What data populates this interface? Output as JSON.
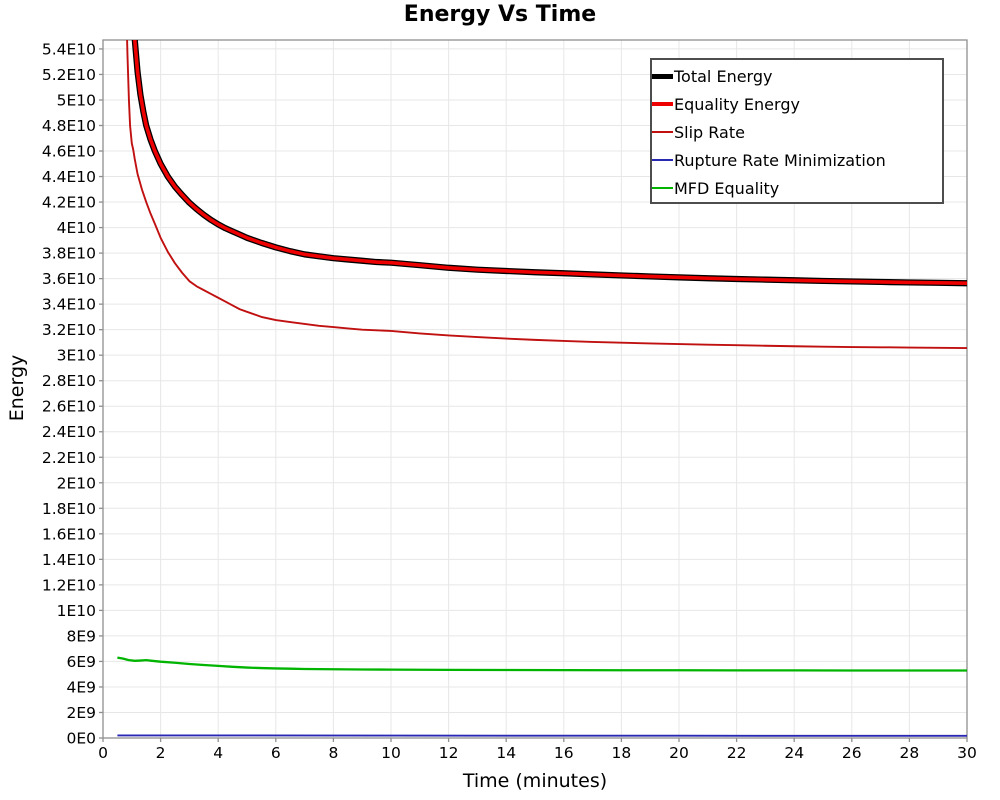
{
  "chart_data": {
    "type": "line",
    "title": "Energy Vs Time",
    "xlabel": "Time (minutes)",
    "ylabel": "Energy",
    "xlim": [
      0,
      30
    ],
    "ylim": [
      0,
      54700000000.0
    ],
    "grid": true,
    "legend_position": "top-right",
    "background_color": "#ffffff",
    "grid_color": "#e7e7e7",
    "frame_color": "#8f8f8f",
    "x_ticks": [
      0,
      2,
      4,
      6,
      8,
      10,
      12,
      14,
      16,
      18,
      20,
      22,
      24,
      26,
      28,
      30
    ],
    "x_tick_labels": [
      "0",
      "2",
      "4",
      "6",
      "8",
      "10",
      "12",
      "14",
      "16",
      "18",
      "20",
      "22",
      "24",
      "26",
      "28",
      "30"
    ],
    "y_tick_values": [
      0,
      2000000000.0,
      4000000000.0,
      6000000000.0,
      8000000000.0,
      10000000000.0,
      12000000000.0,
      14000000000.0,
      16000000000.0,
      18000000000.0,
      20000000000.0,
      22000000000.0,
      24000000000.0,
      26000000000.0,
      28000000000.0,
      30000000000.0,
      32000000000.0,
      34000000000.0,
      36000000000.0,
      38000000000.0,
      40000000000.0,
      42000000000.0,
      44000000000.0,
      46000000000.0,
      48000000000.0,
      50000000000.0,
      52000000000.0,
      54000000000.0
    ],
    "y_tick_labels": [
      "0E0",
      "2E9",
      "4E9",
      "6E9",
      "8E9",
      "1E10",
      "1.2E10",
      "1.4E10",
      "1.6E10",
      "1.8E10",
      "2E10",
      "2.2E10",
      "2.4E10",
      "2.6E10",
      "2.8E10",
      "3E10",
      "3.2E10",
      "3.4E10",
      "3.6E10",
      "3.8E10",
      "4E10",
      "4.2E10",
      "4.4E10",
      "4.6E10",
      "4.8E10",
      "5E10",
      "5.2E10",
      "5.4E10"
    ],
    "series": [
      {
        "name": "Total Energy",
        "color": "#000000",
        "line_width": 6.2,
        "legend_line_width": 5,
        "x": [
          0.9,
          1.0,
          1.1,
          1.2,
          1.3,
          1.4,
          1.5,
          1.65,
          1.8,
          2.0,
          2.25,
          2.5,
          2.75,
          3.0,
          3.25,
          3.5,
          3.75,
          4.0,
          4.25,
          4.5,
          4.75,
          5.0,
          5.5,
          6.0,
          6.5,
          7.0,
          7.5,
          8.0,
          8.5,
          9.0,
          9.5,
          10,
          11,
          12,
          13,
          14,
          15,
          16,
          17,
          18,
          19,
          20,
          21,
          22,
          23,
          24,
          25,
          26,
          27,
          28,
          29,
          30
        ],
        "y": [
          66000000000.0,
          58000000000.0,
          54800000000.0,
          52200000000.0,
          50400000000.0,
          49100000000.0,
          48000000000.0,
          46900000000.0,
          46000000000.0,
          45000000000.0,
          44000000000.0,
          43200000000.0,
          42550000000.0,
          41950000000.0,
          41450000000.0,
          41000000000.0,
          40600000000.0,
          40250000000.0,
          39950000000.0,
          39700000000.0,
          39450000000.0,
          39200000000.0,
          38800000000.0,
          38450000000.0,
          38150000000.0,
          37900000000.0,
          37750000000.0,
          37600000000.0,
          37500000000.0,
          37400000000.0,
          37300000000.0,
          37250000000.0,
          37050000000.0,
          36850000000.0,
          36700000000.0,
          36600000000.0,
          36500000000.0,
          36420000000.0,
          36330000000.0,
          36250000000.0,
          36170000000.0,
          36100000000.0,
          36030000000.0,
          35970000000.0,
          35920000000.0,
          35870000000.0,
          35820000000.0,
          35780000000.0,
          35740000000.0,
          35700000000.0,
          35670000000.0,
          35640000000.0
        ]
      },
      {
        "name": "Equality Energy",
        "color": "#ee0000",
        "line_width": 3.6,
        "legend_line_width": 4,
        "x": [
          0.9,
          1.0,
          1.1,
          1.2,
          1.3,
          1.4,
          1.5,
          1.65,
          1.8,
          2.0,
          2.25,
          2.5,
          2.75,
          3.0,
          3.25,
          3.5,
          3.75,
          4.0,
          4.25,
          4.5,
          4.75,
          5.0,
          5.5,
          6.0,
          6.5,
          7.0,
          7.5,
          8.0,
          8.5,
          9.0,
          9.5,
          10,
          11,
          12,
          13,
          14,
          15,
          16,
          17,
          18,
          19,
          20,
          21,
          22,
          23,
          24,
          25,
          26,
          27,
          28,
          29,
          30
        ],
        "y": [
          66000000000.0,
          58000000000.0,
          54800000000.0,
          52200000000.0,
          50400000000.0,
          49100000000.0,
          48000000000.0,
          46900000000.0,
          46000000000.0,
          45000000000.0,
          44000000000.0,
          43200000000.0,
          42550000000.0,
          41950000000.0,
          41450000000.0,
          41000000000.0,
          40600000000.0,
          40250000000.0,
          39950000000.0,
          39700000000.0,
          39450000000.0,
          39200000000.0,
          38800000000.0,
          38450000000.0,
          38150000000.0,
          37900000000.0,
          37750000000.0,
          37600000000.0,
          37500000000.0,
          37400000000.0,
          37300000000.0,
          37250000000.0,
          37050000000.0,
          36850000000.0,
          36700000000.0,
          36600000000.0,
          36500000000.0,
          36420000000.0,
          36330000000.0,
          36250000000.0,
          36170000000.0,
          36100000000.0,
          36030000000.0,
          35970000000.0,
          35920000000.0,
          35870000000.0,
          35820000000.0,
          35780000000.0,
          35740000000.0,
          35700000000.0,
          35670000000.0,
          35640000000.0
        ]
      },
      {
        "name": "Slip Rate",
        "color": "#c01010",
        "line_width": 1.9,
        "legend_line_width": 2,
        "x": [
          0.75,
          0.8,
          0.85,
          0.9,
          0.94,
          1.0,
          1.05,
          1.1,
          1.2,
          1.35,
          1.5,
          1.65,
          1.8,
          2.0,
          2.25,
          2.5,
          2.75,
          3.0,
          3.25,
          3.5,
          3.75,
          4.0,
          4.25,
          4.5,
          4.75,
          5.0,
          5.5,
          6.0,
          6.5,
          7.0,
          7.5,
          8.0,
          8.5,
          9.0,
          9.5,
          10,
          11,
          12,
          13,
          14,
          15,
          16,
          17,
          18,
          19,
          20,
          21,
          22,
          23,
          24,
          25,
          26,
          27,
          28,
          29,
          30
        ],
        "y": [
          66000000000.0,
          58000000000.0,
          53500000000.0,
          50000000000.0,
          48000000000.0,
          46600000000.0,
          46100000000.0,
          45400000000.0,
          44200000000.0,
          43000000000.0,
          42000000000.0,
          41100000000.0,
          40300000000.0,
          39200000000.0,
          38100000000.0,
          37200000000.0,
          36450000000.0,
          35800000000.0,
          35400000000.0,
          35100000000.0,
          34800000000.0,
          34500000000.0,
          34200000000.0,
          33900000000.0,
          33600000000.0,
          33400000000.0,
          33000000000.0,
          32750000000.0,
          32600000000.0,
          32450000000.0,
          32300000000.0,
          32200000000.0,
          32100000000.0,
          32000000000.0,
          31950000000.0,
          31900000000.0,
          31700000000.0,
          31550000000.0,
          31420000000.0,
          31300000000.0,
          31200000000.0,
          31120000000.0,
          31040000000.0,
          30980000000.0,
          30920000000.0,
          30870000000.0,
          30820000000.0,
          30780000000.0,
          30740000000.0,
          30700000000.0,
          30670000000.0,
          30640000000.0,
          30620000000.0,
          30600000000.0,
          30580000000.0,
          30560000000.0
        ]
      },
      {
        "name": "Rupture Rate Minimization",
        "color": "#2828b4",
        "line_width": 1.9,
        "legend_line_width": 2,
        "x": [
          0.5,
          5,
          10,
          15,
          20,
          25,
          30
        ],
        "y": [
          200000000.0,
          200000000.0,
          190000000.0,
          180000000.0,
          180000000.0,
          170000000.0,
          170000000.0
        ]
      },
      {
        "name": "MFD Equality",
        "color": "#00b400",
        "line_width": 2.3,
        "legend_line_width": 2,
        "x": [
          0.5,
          0.7,
          0.9,
          1.1,
          1.3,
          1.5,
          1.7,
          2.0,
          2.5,
          3.0,
          3.5,
          4.0,
          4.5,
          5.0,
          5.5,
          6.0,
          6.5,
          7.0,
          8.0,
          9.0,
          10,
          11,
          12,
          14,
          16,
          18,
          20,
          22,
          24,
          26,
          28,
          30
        ],
        "y": [
          6300000000.0,
          6220000000.0,
          6100000000.0,
          6050000000.0,
          6070000000.0,
          6100000000.0,
          6050000000.0,
          5980000000.0,
          5900000000.0,
          5800000000.0,
          5720000000.0,
          5650000000.0,
          5580000000.0,
          5520000000.0,
          5480000000.0,
          5450000000.0,
          5430000000.0,
          5410000000.0,
          5390000000.0,
          5370000000.0,
          5360000000.0,
          5350000000.0,
          5340000000.0,
          5330000000.0,
          5320000000.0,
          5310000000.0,
          5310000000.0,
          5300000000.0,
          5300000000.0,
          5290000000.0,
          5290000000.0,
          5290000000.0
        ]
      }
    ]
  }
}
